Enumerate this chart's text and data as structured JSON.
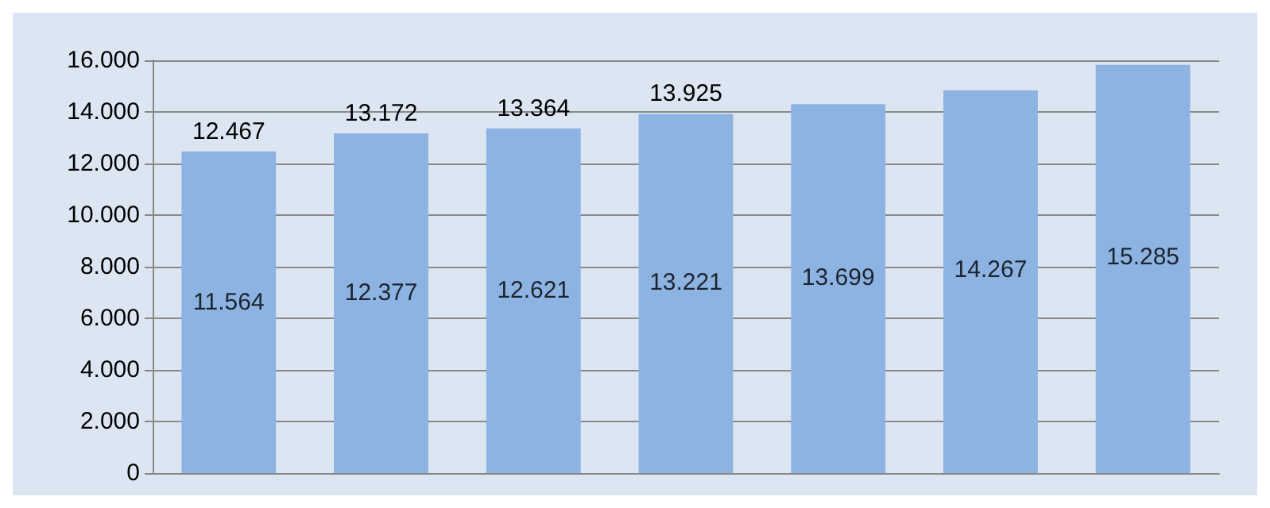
{
  "chart_data": {
    "type": "bar",
    "categories": [
      null,
      null,
      null,
      null,
      null,
      null,
      null
    ],
    "values": [
      12467,
      13172,
      13364,
      13925,
      14300,
      14840,
      15820
    ],
    "value_labels": [
      "12.467",
      "13.172",
      "13.364",
      "13.925",
      null,
      null,
      null
    ],
    "color": "#8db3e2",
    "ylim": [
      0,
      16000
    ],
    "yticks": [
      {
        "value": 0,
        "label": "0"
      },
      {
        "value": 2000,
        "label": "2.000"
      },
      {
        "value": 4000,
        "label": "4.000"
      },
      {
        "value": 6000,
        "label": "6.000"
      },
      {
        "value": 8000,
        "label": "8.000"
      },
      {
        "value": 10000,
        "label": "10.000"
      },
      {
        "value": 12000,
        "label": "12.000"
      },
      {
        "value": 14000,
        "label": "14.000"
      },
      {
        "value": 16000,
        "label": "16.000"
      }
    ],
    "grid": "y",
    "annotations": [
      "11.564",
      "12.377",
      "12.621",
      "13.221",
      "13.699",
      "14.267",
      "15.285"
    ]
  }
}
